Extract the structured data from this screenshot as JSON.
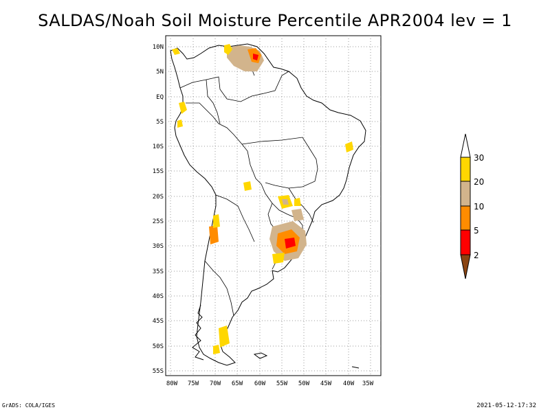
{
  "title": "SALDAS/Noah Soil Moisture Percentile APR2004 lev = 1",
  "footer": {
    "left": "GrADS: COLA/IGES",
    "right": "2021-05-12-17:32"
  },
  "map": {
    "lat_labels": [
      "10N",
      "5N",
      "EQ",
      "5S",
      "10S",
      "15S",
      "20S",
      "25S",
      "30S",
      "35S",
      "40S",
      "45S",
      "50S",
      "55S"
    ],
    "lon_labels": [
      "80W",
      "75W",
      "70W",
      "65W",
      "60W",
      "55W",
      "50W",
      "45W",
      "40W",
      "35W"
    ],
    "lon_range": [
      -81,
      -33
    ],
    "lat_range": [
      -56,
      12
    ],
    "grid": true
  },
  "legend": {
    "labels": [
      "30",
      "20",
      "10",
      "5",
      "2"
    ],
    "colors": {
      "above_30": "#ffffff",
      "20_30": "#ffd700",
      "10_20": "#d2b48c",
      "5_10": "#ff8c00",
      "2_5": "#ff0000",
      "below_2": "#8b4513"
    }
  }
}
